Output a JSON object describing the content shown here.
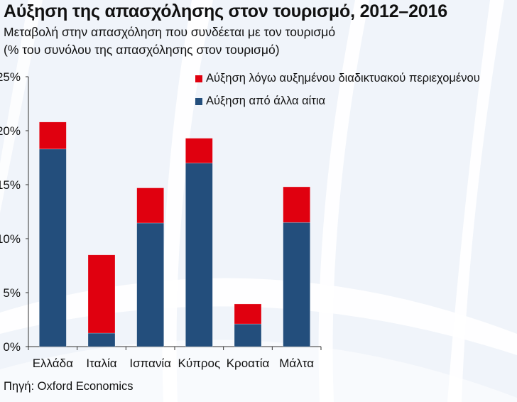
{
  "title": "Αύξηση της απασχόλησης στον τουρισμό, 2012–2016",
  "subtitle_line1": "Μεταβολή στην απασχόληση που συνδέεται με τον τουρισμό",
  "subtitle_line2": "(% του συνόλου της απασχόλησης στον τουρισμό)",
  "source": "Πηγή: Oxford Economics",
  "colors": {
    "online": "#e0000f",
    "other": "#234e7c",
    "background": "#f0f4fa"
  },
  "chart_data": {
    "type": "bar",
    "stacked": true,
    "title": "Αύξηση της απασχόλησης στον τουρισμό, 2012–2016",
    "xlabel": "",
    "ylabel": "",
    "ylim": [
      0,
      25
    ],
    "yticks": [
      0,
      5,
      10,
      15,
      20,
      25
    ],
    "ytick_labels": [
      "0%",
      "5%",
      "10%",
      "15%",
      "20%",
      "25%"
    ],
    "legend_position": "top-right",
    "categories": [
      "Ελλάδα",
      "Ιταλία",
      "Ισπανία",
      "Κύπρος",
      "Κροατία",
      "Μάλτα"
    ],
    "series": [
      {
        "name": "Αύξηση από άλλα αίτια",
        "color": "#234e7c",
        "values": [
          18.3,
          1.25,
          11.45,
          17.0,
          2.1,
          11.5
        ]
      },
      {
        "name": "Αύξηση λόγω αυξημένου διαδικτυακού περιεχομένου",
        "color": "#e0000f",
        "values": [
          2.5,
          7.25,
          3.25,
          2.3,
          1.85,
          3.3
        ]
      }
    ]
  }
}
